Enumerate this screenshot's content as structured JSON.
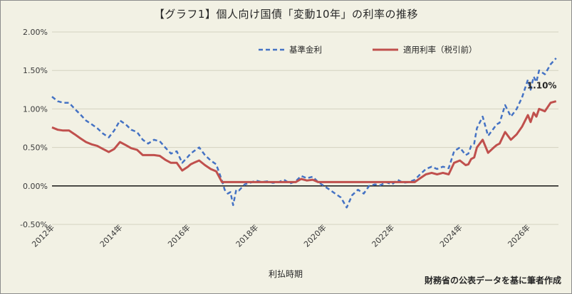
{
  "title": "【グラフ1】個人向け国債「変動10年」の利率の推移",
  "source_note": "財務省の公表データを基に筆者作成",
  "chart_data": {
    "type": "line",
    "xlabel": "利払時期",
    "ylabel": "",
    "ylim": [
      -0.5,
      2.0
    ],
    "xlim": [
      2012.0,
      2026.9
    ],
    "y_ticks": [
      "2.00%",
      "1.50%",
      "1.00%",
      "0.50%",
      "0.00%",
      "-0.50%"
    ],
    "y_tick_values": [
      2.0,
      1.5,
      1.0,
      0.5,
      0.0,
      -0.5
    ],
    "x_ticks": [
      "2012年",
      "2014年",
      "2016年",
      "2018年",
      "2020年",
      "2022年",
      "2024年",
      "2026年"
    ],
    "x_tick_values": [
      2012,
      2014,
      2016,
      2018,
      2020,
      2022,
      2024,
      2026
    ],
    "grid": true,
    "legend_position": "top",
    "annotation": {
      "text": "1.10%",
      "x": 2026.83,
      "y": 1.1
    },
    "series": [
      {
        "name": "基準金利",
        "color": "#4472c4",
        "style": "dashed",
        "x": [
          2012.0,
          2012.17,
          2012.33,
          2012.5,
          2012.67,
          2012.83,
          2013.0,
          2013.17,
          2013.33,
          2013.5,
          2013.67,
          2013.83,
          2014.0,
          2014.17,
          2014.33,
          2014.5,
          2014.67,
          2014.83,
          2015.0,
          2015.17,
          2015.33,
          2015.5,
          2015.67,
          2015.83,
          2016.0,
          2016.08,
          2016.17,
          2016.33,
          2016.5,
          2016.67,
          2016.83,
          2017.0,
          2017.08,
          2017.17,
          2017.25,
          2017.33,
          2017.42,
          2017.5,
          2017.67,
          2017.83,
          2018.0,
          2018.17,
          2018.33,
          2018.5,
          2018.67,
          2018.83,
          2019.0,
          2019.17,
          2019.33,
          2019.5,
          2019.67,
          2019.83,
          2020.0,
          2020.17,
          2020.33,
          2020.5,
          2020.67,
          2020.83,
          2021.0,
          2021.17,
          2021.33,
          2021.5,
          2021.67,
          2021.83,
          2022.0,
          2022.17,
          2022.33,
          2022.5,
          2022.67,
          2022.83,
          2023.0,
          2023.17,
          2023.33,
          2023.5,
          2023.67,
          2023.83,
          2024.0,
          2024.17,
          2024.25,
          2024.33,
          2024.42,
          2024.5,
          2024.67,
          2024.83,
          2025.0,
          2025.08,
          2025.17,
          2025.33,
          2025.5,
          2025.67,
          2025.83,
          2026.0,
          2026.08,
          2026.17,
          2026.25,
          2026.33,
          2026.5,
          2026.67,
          2026.83
        ],
        "values": [
          1.16,
          1.1,
          1.08,
          1.08,
          1.0,
          0.93,
          0.85,
          0.8,
          0.75,
          0.68,
          0.63,
          0.72,
          0.85,
          0.8,
          0.73,
          0.7,
          0.6,
          0.55,
          0.6,
          0.58,
          0.5,
          0.42,
          0.45,
          0.3,
          0.38,
          0.42,
          0.45,
          0.5,
          0.4,
          0.33,
          0.28,
          0.07,
          -0.05,
          -0.1,
          -0.08,
          -0.25,
          -0.05,
          -0.06,
          0.02,
          0.04,
          0.07,
          0.05,
          0.06,
          0.04,
          0.05,
          0.08,
          0.03,
          0.06,
          0.13,
          0.1,
          0.12,
          0.05,
          0.0,
          -0.05,
          -0.1,
          -0.15,
          -0.28,
          -0.12,
          -0.05,
          -0.1,
          0.0,
          0.02,
          0.01,
          0.05,
          0.02,
          0.08,
          0.04,
          0.05,
          0.08,
          0.15,
          0.22,
          0.25,
          0.22,
          0.25,
          0.23,
          0.45,
          0.5,
          0.4,
          0.42,
          0.52,
          0.55,
          0.75,
          0.9,
          0.65,
          0.75,
          0.8,
          0.82,
          1.05,
          0.9,
          1.0,
          1.15,
          1.38,
          1.25,
          1.42,
          1.35,
          1.5,
          1.45,
          1.58,
          1.66
        ]
      },
      {
        "name": "適用利率（税引前）",
        "color": "#c0504d",
        "style": "solid",
        "x": [
          2012.0,
          2012.17,
          2012.33,
          2012.5,
          2012.67,
          2012.83,
          2013.0,
          2013.17,
          2013.33,
          2013.5,
          2013.67,
          2013.83,
          2014.0,
          2014.17,
          2014.33,
          2014.5,
          2014.67,
          2014.83,
          2015.0,
          2015.17,
          2015.33,
          2015.5,
          2015.67,
          2015.83,
          2016.0,
          2016.08,
          2016.17,
          2016.33,
          2016.5,
          2016.67,
          2016.83,
          2017.0,
          2017.17,
          2017.5,
          2017.83,
          2018.0,
          2018.33,
          2018.67,
          2019.0,
          2019.17,
          2019.33,
          2019.5,
          2019.67,
          2019.83,
          2020.0,
          2020.5,
          2021.0,
          2021.5,
          2022.0,
          2022.17,
          2022.33,
          2022.5,
          2022.67,
          2022.83,
          2023.0,
          2023.17,
          2023.33,
          2023.5,
          2023.67,
          2023.83,
          2024.0,
          2024.17,
          2024.25,
          2024.33,
          2024.42,
          2024.5,
          2024.67,
          2024.83,
          2025.0,
          2025.08,
          2025.17,
          2025.33,
          2025.5,
          2025.67,
          2025.83,
          2026.0,
          2026.08,
          2026.17,
          2026.25,
          2026.33,
          2026.5,
          2026.67,
          2026.83
        ],
        "values": [
          0.76,
          0.73,
          0.72,
          0.72,
          0.67,
          0.62,
          0.57,
          0.54,
          0.52,
          0.48,
          0.44,
          0.48,
          0.57,
          0.53,
          0.49,
          0.47,
          0.4,
          0.4,
          0.4,
          0.39,
          0.34,
          0.3,
          0.3,
          0.2,
          0.25,
          0.28,
          0.3,
          0.33,
          0.27,
          0.22,
          0.19,
          0.05,
          0.05,
          0.05,
          0.05,
          0.05,
          0.05,
          0.05,
          0.05,
          0.05,
          0.09,
          0.07,
          0.08,
          0.05,
          0.05,
          0.05,
          0.05,
          0.05,
          0.05,
          0.05,
          0.05,
          0.05,
          0.05,
          0.1,
          0.15,
          0.17,
          0.15,
          0.17,
          0.15,
          0.3,
          0.33,
          0.27,
          0.28,
          0.35,
          0.37,
          0.5,
          0.6,
          0.43,
          0.5,
          0.53,
          0.55,
          0.7,
          0.6,
          0.67,
          0.77,
          0.92,
          0.83,
          0.95,
          0.9,
          1.0,
          0.97,
          1.08,
          1.1
        ]
      }
    ]
  }
}
